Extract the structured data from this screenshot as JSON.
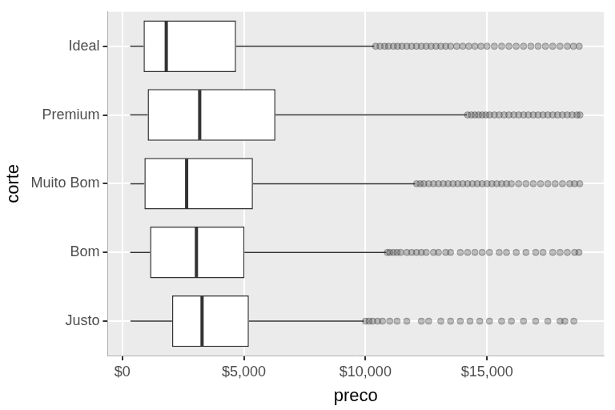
{
  "chart_data": {
    "type": "boxplot",
    "orientation": "horizontal",
    "x_label": "preco",
    "y_label": "corte",
    "categories": [
      "Ideal",
      "Premium",
      "Muito Bom",
      "Bom",
      "Justo"
    ],
    "boxes": [
      {
        "min": 326,
        "q1": 878,
        "median": 1810,
        "q3": 4678,
        "max": 10370,
        "outliers": [
          10420,
          10600,
          10790,
          10950,
          11150,
          11320,
          11500,
          11700,
          11900,
          12100,
          12300,
          12500,
          12700,
          12900,
          13100,
          13300,
          13500,
          13750,
          14000,
          14250,
          14500,
          14750,
          15000,
          15300,
          15600,
          15900,
          16200,
          16500,
          16800,
          17100,
          17400,
          17700,
          18000,
          18300,
          18550,
          18790
        ]
      },
      {
        "min": 326,
        "q1": 1046,
        "median": 3185,
        "q3": 6296,
        "max": 14170,
        "outliers": [
          14200,
          14350,
          14500,
          14650,
          14800,
          14950,
          15100,
          15300,
          15500,
          15700,
          15900,
          16100,
          16300,
          16500,
          16700,
          16900,
          17100,
          17300,
          17500,
          17700,
          17900,
          18100,
          18300,
          18500,
          18700,
          18820
        ]
      },
      {
        "min": 336,
        "q1": 912,
        "median": 2648,
        "q3": 5373,
        "max": 12050,
        "outliers": [
          12100,
          12250,
          12400,
          12600,
          12800,
          13000,
          13200,
          13400,
          13600,
          13800,
          14000,
          14200,
          14400,
          14600,
          14800,
          15000,
          15200,
          15400,
          15600,
          15800,
          16000,
          16300,
          16600,
          16900,
          17200,
          17500,
          17800,
          18100,
          18400,
          18600,
          18810
        ]
      },
      {
        "min": 327,
        "q1": 1145,
        "median": 3050,
        "q3": 5028,
        "max": 10850,
        "outliers": [
          10900,
          11000,
          11150,
          11300,
          11450,
          11700,
          11900,
          12100,
          12300,
          12500,
          12800,
          13000,
          13300,
          13500,
          13900,
          14200,
          14500,
          14800,
          15100,
          15500,
          15800,
          16200,
          16600,
          17000,
          17300,
          17700,
          18000,
          18300,
          18600,
          18780
        ]
      },
      {
        "min": 337,
        "q1": 2050,
        "median": 3282,
        "q3": 5206,
        "max": 9940,
        "outliers": [
          10000,
          10150,
          10300,
          10500,
          10700,
          11000,
          11300,
          11700,
          12300,
          12600,
          13100,
          13500,
          13900,
          14300,
          14700,
          15100,
          15600,
          16000,
          16500,
          17000,
          17500,
          18000,
          18200,
          18570
        ]
      }
    ],
    "xlim": [
      -600,
      19800
    ],
    "xticks": [
      {
        "value": 0,
        "label": "$0"
      },
      {
        "value": 5000,
        "label": "$5,000"
      },
      {
        "value": 10000,
        "label": "$10,000"
      },
      {
        "value": 15000,
        "label": "$15,000"
      }
    ],
    "grid": true,
    "color": "#333333"
  }
}
